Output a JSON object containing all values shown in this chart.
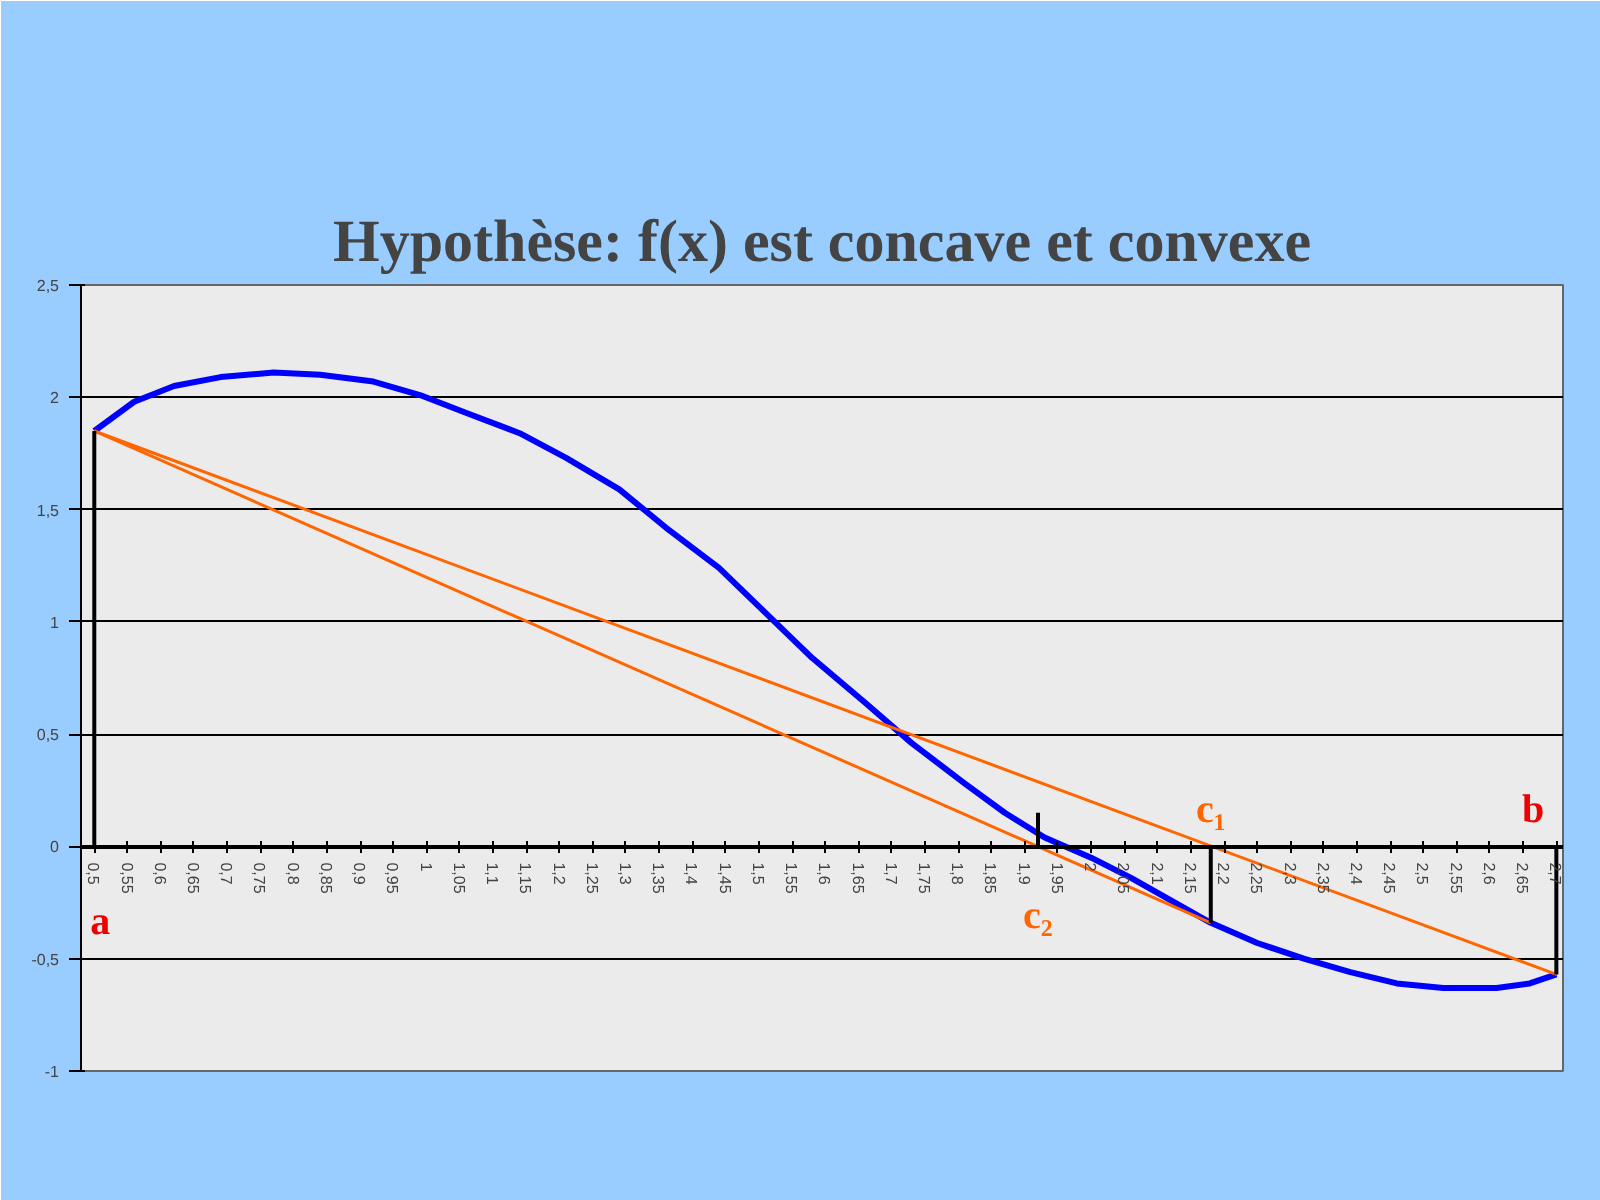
{
  "chart_data": {
    "type": "line",
    "title": "Hypothèse: f(x) est concave et convexe",
    "xlim": [
      0.48,
      2.71
    ],
    "ylim": [
      -1,
      2.5
    ],
    "xticks": [
      {
        "value": 0.5,
        "label": "0,5"
      },
      {
        "value": 0.55,
        "label": "0,55"
      },
      {
        "value": 0.6,
        "label": "0,6"
      },
      {
        "value": 0.65,
        "label": "0,65"
      },
      {
        "value": 0.7,
        "label": "0,7"
      },
      {
        "value": 0.75,
        "label": "0,75"
      },
      {
        "value": 0.8,
        "label": "0,8"
      },
      {
        "value": 0.85,
        "label": "0,85"
      },
      {
        "value": 0.9,
        "label": "0,9"
      },
      {
        "value": 0.95,
        "label": "0,95"
      },
      {
        "value": 1,
        "label": "1"
      },
      {
        "value": 1.05,
        "label": "1,05"
      },
      {
        "value": 1.1,
        "label": "1,1"
      },
      {
        "value": 1.15,
        "label": "1,15"
      },
      {
        "value": 1.2,
        "label": "1,2"
      },
      {
        "value": 1.25,
        "label": "1,25"
      },
      {
        "value": 1.3,
        "label": "1,3"
      },
      {
        "value": 1.35,
        "label": "1,35"
      },
      {
        "value": 1.4,
        "label": "1,4"
      },
      {
        "value": 1.45,
        "label": "1,45"
      },
      {
        "value": 1.5,
        "label": "1,5"
      },
      {
        "value": 1.55,
        "label": "1,55"
      },
      {
        "value": 1.6,
        "label": "1,6"
      },
      {
        "value": 1.65,
        "label": "1,65"
      },
      {
        "value": 1.7,
        "label": "1,7"
      },
      {
        "value": 1.75,
        "label": "1,75"
      },
      {
        "value": 1.8,
        "label": "1,8"
      },
      {
        "value": 1.85,
        "label": "1,85"
      },
      {
        "value": 1.9,
        "label": "1,9"
      },
      {
        "value": 1.95,
        "label": "1,95"
      },
      {
        "value": 2,
        "label": "2"
      },
      {
        "value": 2.05,
        "label": "2,05"
      },
      {
        "value": 2.1,
        "label": "2,1"
      },
      {
        "value": 2.15,
        "label": "2,15"
      },
      {
        "value": 2.2,
        "label": "2,2"
      },
      {
        "value": 2.25,
        "label": "2,25"
      },
      {
        "value": 2.3,
        "label": "2,3"
      },
      {
        "value": 2.35,
        "label": "2,35"
      },
      {
        "value": 2.4,
        "label": "2,4"
      },
      {
        "value": 2.45,
        "label": "2,45"
      },
      {
        "value": 2.5,
        "label": "2,5"
      },
      {
        "value": 2.55,
        "label": "2,55"
      },
      {
        "value": 2.6,
        "label": "2,6"
      },
      {
        "value": 2.65,
        "label": "2,65"
      },
      {
        "value": 2.7,
        "label": "2,7"
      }
    ],
    "yticks": [
      {
        "value": -1,
        "label": "-1"
      },
      {
        "value": -0.5,
        "label": "-0,5"
      },
      0,
      {
        "value": 0.5,
        "label": "0,5"
      },
      1,
      {
        "value": 1.5,
        "label": "1,5"
      },
      2,
      {
        "value": 2.5,
        "label": "2,5"
      }
    ],
    "grid": "y",
    "marker": "none",
    "line_style": "solid",
    "series": [
      {
        "color": "#0000ff",
        "x": [
          0.5,
          0.56,
          0.62,
          0.69,
          0.77,
          0.84,
          0.92,
          0.99,
          1.06,
          1.14,
          1.21,
          1.29,
          1.36,
          1.44,
          1.51,
          1.58,
          1.66,
          1.73,
          1.81,
          1.87,
          1.93,
          2.0,
          2.06,
          2.12,
          2.18,
          2.25,
          2.32,
          2.39,
          2.46,
          2.53,
          2.61,
          2.66,
          2.7
        ],
        "values": [
          1.85,
          1.98,
          2.05,
          2.09,
          2.11,
          2.1,
          2.07,
          2.01,
          1.93,
          1.84,
          1.73,
          1.59,
          1.42,
          1.24,
          1.04,
          0.84,
          0.64,
          0.46,
          0.28,
          0.15,
          0.04,
          -0.05,
          -0.14,
          -0.24,
          -0.34,
          -0.43,
          -0.5,
          -0.56,
          -0.61,
          -0.63,
          -0.63,
          -0.61,
          -0.57
        ]
      },
      {
        "color": "#ff6600",
        "x": [
          0.5,
          2.7
        ],
        "values": [
          1.85,
          -0.57
        ]
      },
      {
        "color": "#ff6600",
        "x": [
          0.5,
          2.18
        ],
        "values": [
          1.85,
          -0.34
        ]
      },
      {
        "color": "#000000",
        "x": [
          0.5,
          0.5
        ],
        "values": [
          0,
          1.85
        ]
      },
      {
        "color": "#000000",
        "x": [
          1.92,
          1.92
        ],
        "values": [
          0,
          0.15
        ]
      },
      {
        "color": "#000000",
        "x": [
          2.18,
          2.18
        ],
        "values": [
          0,
          -0.34
        ]
      },
      {
        "color": "#000000",
        "x": [
          2.7,
          2.7
        ],
        "values": [
          0,
          -0.57
        ]
      }
    ],
    "annotations": [
      {
        "text": "a",
        "x": 0.5,
        "y": 0
      },
      {
        "text": "b",
        "x": 2.7,
        "y": 0
      },
      {
        "text": "c₁",
        "x": 2.18,
        "y": 0
      },
      {
        "text": "c₂",
        "x": 1.92,
        "y": 0
      }
    ]
  }
}
